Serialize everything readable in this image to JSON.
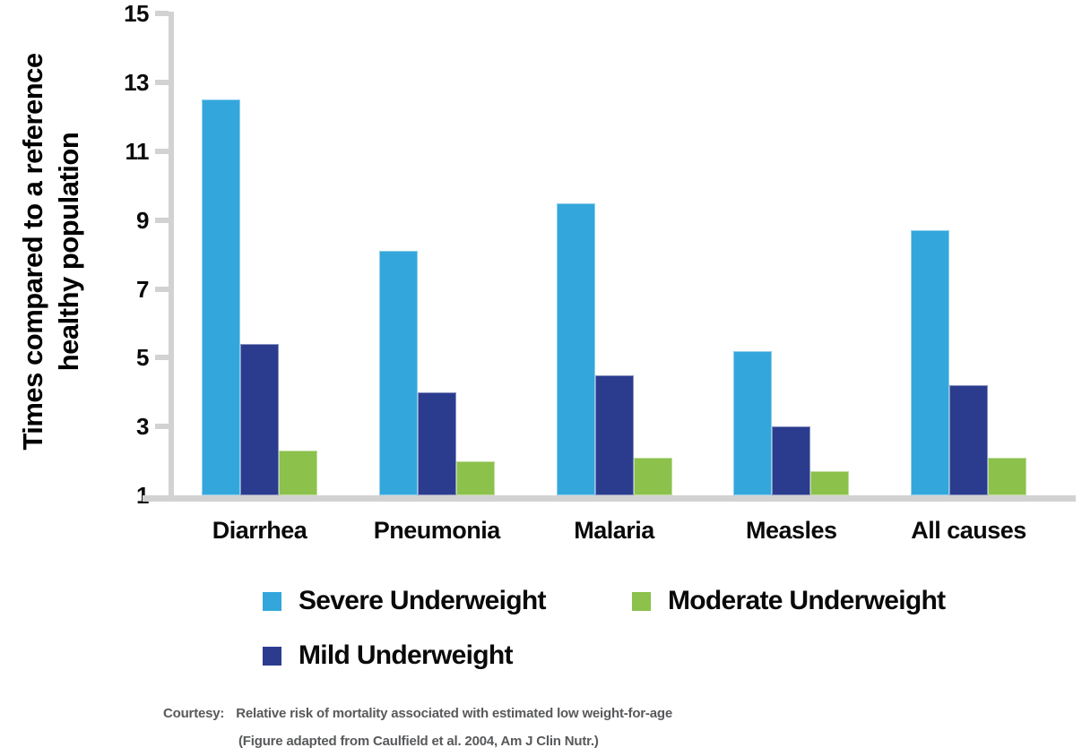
{
  "chart_data": {
    "type": "bar",
    "title": "",
    "ylabel_lines": [
      "Times compared to a reference",
      "healthy population"
    ],
    "xlabel": "",
    "categories": [
      "Diarrhea",
      "Pneumonia",
      "Malaria",
      "Measles",
      "All causes"
    ],
    "series": [
      {
        "name": "Severe Underweight",
        "color": "#33a7dc",
        "values": [
          12.5,
          8.1,
          9.5,
          5.2,
          8.7
        ]
      },
      {
        "name": "Mild Underweight",
        "color": "#2b3c8e",
        "values": [
          5.4,
          4.0,
          4.5,
          3.0,
          4.2
        ]
      },
      {
        "name": "Moderate Underweight",
        "color": "#8cc14c",
        "values": [
          2.3,
          2.0,
          2.1,
          1.7,
          2.1
        ]
      }
    ],
    "legend_order": [
      "Severe Underweight",
      "Moderate Underweight",
      "Mild Underweight"
    ],
    "legend_position": "bottom",
    "grid": false,
    "ylim": [
      1,
      15
    ],
    "yticks": [
      15,
      13,
      11,
      9,
      7,
      5,
      3,
      1
    ],
    "axis_color": "#d2d2d2"
  },
  "caption": {
    "prefix": "Courtesy:",
    "line1": "Relative risk of mortality associated with estimated low weight-for-age",
    "line2": "(Figure adapted from Caulfield et al. 2004, Am J Clin Nutr.)"
  }
}
